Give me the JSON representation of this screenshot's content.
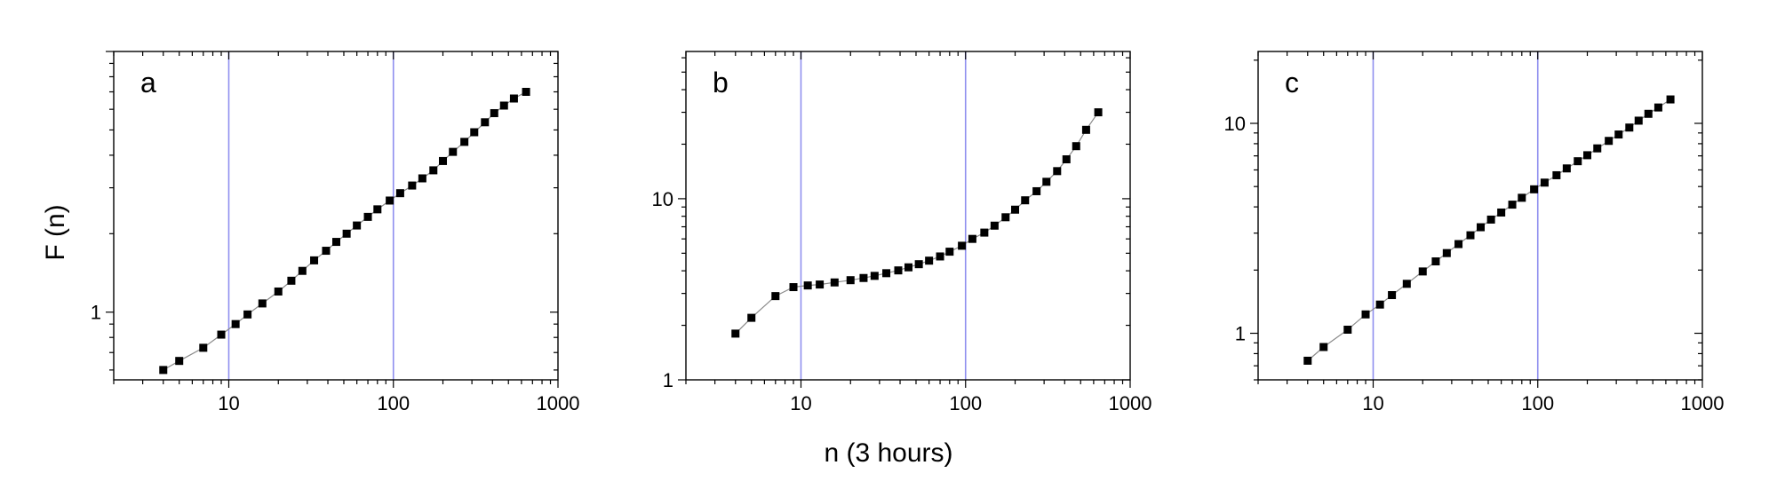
{
  "chart_data": {
    "shared_xlabel": "n (3 hours)",
    "shared_ylabel": "F (n)",
    "panels": [
      {
        "letter": "a",
        "type": "scatter",
        "x_scale": "log",
        "y_scale": "log",
        "xlim": [
          2,
          1000
        ],
        "ylim": [
          0.55,
          10
        ],
        "x_ticks": [
          10,
          100,
          1000
        ],
        "y_ticks": [
          1
        ],
        "reference_lines_x": [
          10,
          100
        ],
        "series": [
          {
            "x": [
              4,
              5,
              7,
              9,
              11,
              13,
              16,
              20,
              24,
              28,
              33,
              39,
              45,
              52,
              60,
              70,
              80,
              95,
              110,
              130,
              150,
              175,
              200,
              230,
              270,
              310,
              360,
              410,
              470,
              540,
              640
            ],
            "y": [
              0.6,
              0.65,
              0.73,
              0.82,
              0.9,
              0.98,
              1.08,
              1.2,
              1.32,
              1.44,
              1.58,
              1.72,
              1.86,
              2.0,
              2.15,
              2.32,
              2.48,
              2.68,
              2.86,
              3.06,
              3.26,
              3.5,
              3.8,
              4.12,
              4.5,
              4.9,
              5.35,
              5.8,
              6.2,
              6.6,
              7.0
            ]
          }
        ]
      },
      {
        "letter": "b",
        "type": "scatter",
        "x_scale": "log",
        "y_scale": "log",
        "xlim": [
          2,
          1000
        ],
        "ylim": [
          1,
          65
        ],
        "x_ticks": [
          10,
          100,
          1000
        ],
        "y_ticks": [
          1,
          10
        ],
        "reference_lines_x": [
          10,
          100
        ],
        "series": [
          {
            "x": [
              4,
              5,
              7,
              9,
              11,
              13,
              16,
              20,
              24,
              28,
              33,
              39,
              45,
              52,
              60,
              70,
              80,
              95,
              110,
              130,
              150,
              175,
              200,
              230,
              270,
              310,
              360,
              410,
              470,
              540,
              640
            ],
            "y": [
              1.8,
              2.2,
              2.9,
              3.25,
              3.32,
              3.36,
              3.45,
              3.55,
              3.65,
              3.75,
              3.88,
              4.02,
              4.18,
              4.35,
              4.55,
              4.8,
              5.1,
              5.5,
              6.0,
              6.5,
              7.1,
              7.9,
              8.7,
              9.8,
              11.0,
              12.4,
              14.2,
              16.5,
              19.5,
              24.0,
              30.0
            ]
          }
        ]
      },
      {
        "letter": "c",
        "type": "scatter",
        "x_scale": "log",
        "y_scale": "log",
        "xlim": [
          2,
          1000
        ],
        "ylim": [
          0.6,
          22
        ],
        "x_ticks": [
          10,
          100,
          1000
        ],
        "y_ticks": [
          1,
          10
        ],
        "reference_lines_x": [
          10,
          100
        ],
        "series": [
          {
            "x": [
              4,
              5,
              7,
              9,
              11,
              13,
              16,
              20,
              24,
              28,
              33,
              39,
              45,
              52,
              60,
              70,
              80,
              95,
              110,
              130,
              150,
              175,
              200,
              230,
              270,
              310,
              360,
              410,
              470,
              540,
              640
            ],
            "y": [
              0.74,
              0.86,
              1.04,
              1.23,
              1.37,
              1.52,
              1.72,
              1.97,
              2.2,
              2.41,
              2.66,
              2.93,
              3.2,
              3.48,
              3.76,
              4.1,
              4.42,
              4.85,
              5.22,
              5.66,
              6.1,
              6.6,
              7.05,
              7.6,
              8.25,
              8.85,
              9.55,
              10.3,
              11.1,
              11.9,
              13.0
            ]
          }
        ]
      }
    ]
  }
}
